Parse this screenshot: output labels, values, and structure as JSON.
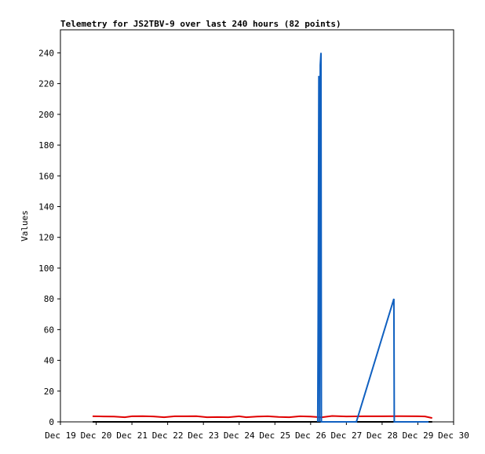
{
  "chart_data": {
    "type": "line",
    "title": "Telemetry for JS2TBV-9 over last 240 hours (82 points)",
    "y_label": "Values",
    "xlim": [
      19,
      30
    ],
    "xticks": [
      {
        "value": 19,
        "label": "Dec 19"
      },
      {
        "value": 20,
        "label": "Dec 20"
      },
      {
        "value": 21,
        "label": "Dec 21"
      },
      {
        "value": 22,
        "label": "Dec 22"
      },
      {
        "value": 23,
        "label": "Dec 23"
      },
      {
        "value": 24,
        "label": "Dec 24"
      },
      {
        "value": 25,
        "label": "Dec 25"
      },
      {
        "value": 26,
        "label": "Dec 26"
      },
      {
        "value": 27,
        "label": "Dec 27"
      },
      {
        "value": 28,
        "label": "Dec 28"
      },
      {
        "value": 29,
        "label": "Dec 29"
      },
      {
        "value": 30,
        "label": "Dec 30"
      }
    ],
    "ylim": [
      0,
      255
    ],
    "yticks": [
      0,
      20,
      40,
      60,
      80,
      100,
      120,
      140,
      160,
      180,
      200,
      220,
      240
    ],
    "grid": false,
    "series": [
      {
        "name": "black",
        "color": "#000000",
        "x": [
          19.9,
          29.4
        ],
        "values": [
          0,
          0
        ]
      },
      {
        "name": "red",
        "color": "#e00000",
        "x": [
          19.9,
          20.2,
          20.5,
          20.8,
          21.0,
          21.3,
          21.6,
          21.9,
          22.2,
          22.5,
          22.8,
          23.1,
          23.4,
          23.7,
          24.0,
          24.2,
          24.5,
          24.8,
          25.1,
          25.4,
          25.7,
          26.0,
          26.3,
          26.6,
          27.0,
          27.5,
          28.0,
          28.5,
          29.0,
          29.2,
          29.4
        ],
        "values": [
          3.6,
          3.5,
          3.4,
          3.0,
          3.6,
          3.7,
          3.5,
          3.0,
          3.6,
          3.6,
          3.7,
          3.0,
          3.1,
          3.0,
          3.6,
          3.0,
          3.4,
          3.6,
          3.2,
          3.0,
          3.6,
          3.4,
          2.9,
          3.8,
          3.5,
          3.6,
          3.6,
          3.7,
          3.6,
          3.5,
          2.5
        ]
      },
      {
        "name": "blue",
        "color": "#1060c0",
        "x": [
          26.2,
          26.21,
          26.23,
          26.25,
          26.27,
          26.29,
          26.3,
          26.32,
          27.28,
          28.33,
          28.34,
          29.3
        ],
        "values": [
          0,
          65,
          225,
          0,
          232,
          240,
          0,
          0,
          0,
          80,
          0,
          0
        ]
      }
    ]
  }
}
